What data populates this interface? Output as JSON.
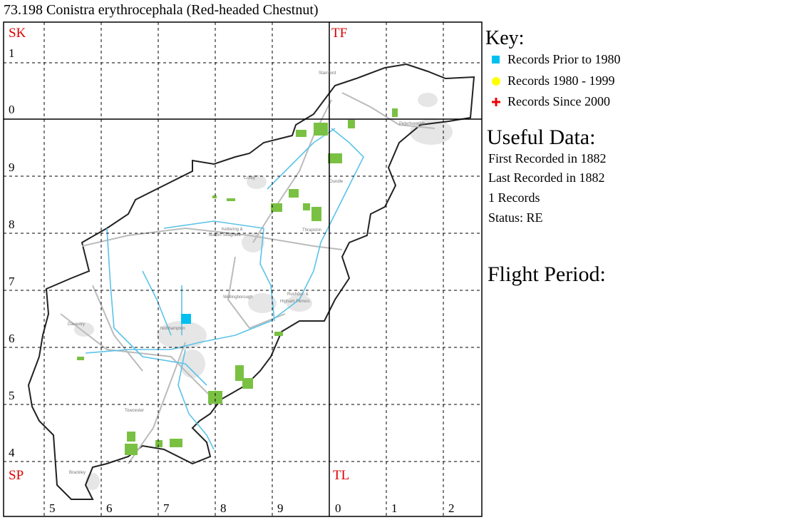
{
  "title": "73.198 Conistra erythrocephala (Red-headed Chestnut)",
  "map": {
    "square_labels": [
      "SK",
      "TF",
      "SP",
      "TL"
    ],
    "row_labels": [
      "1",
      "0",
      "9",
      "8",
      "7",
      "6",
      "5",
      "4"
    ],
    "column_labels": [
      "5",
      "6",
      "7",
      "8",
      "9",
      "0",
      "1",
      "2"
    ],
    "towns": [
      "Stamford",
      "Peterborough",
      "Oundle",
      "Corby",
      "Kettering &",
      "Burton Seagrave",
      "Thrapston",
      "Wellingborough",
      "Rushden &",
      "Higham Ferrers",
      "Daventry",
      "Northampton",
      "Towcester",
      "Brackley"
    ]
  },
  "key": {
    "heading": "Key:",
    "items": [
      "Records Prior to 1980",
      "Records 1980 - 1999",
      "Records Since 2000"
    ]
  },
  "useful_data": {
    "heading": "Useful Data:",
    "lines": [
      "First Recorded in 1882",
      "Last Recorded in 1882",
      "1 Records",
      "Status: RE"
    ]
  },
  "flight_period": {
    "heading": "Flight Period:"
  }
}
